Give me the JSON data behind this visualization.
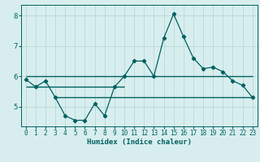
{
  "xlabel": "Humidex (Indice chaleur)",
  "bg_color": "#d8eeee",
  "grid_color": "#b8d8d8",
  "line_color": "#006060",
  "xlim": [
    -0.5,
    23.5
  ],
  "ylim": [
    4.35,
    8.35
  ],
  "yticks": [
    5,
    6,
    7,
    8
  ],
  "xticks": [
    0,
    1,
    2,
    3,
    4,
    5,
    6,
    7,
    8,
    9,
    10,
    11,
    12,
    13,
    14,
    15,
    16,
    17,
    18,
    19,
    20,
    21,
    22,
    23
  ],
  "series1_x": [
    0,
    1,
    2,
    3,
    4,
    5,
    6,
    7,
    8,
    9,
    10,
    11,
    12,
    13,
    14,
    15,
    16,
    17,
    18,
    19,
    20,
    21,
    22,
    23
  ],
  "series1_y": [
    5.9,
    5.65,
    5.85,
    5.3,
    4.7,
    4.55,
    4.55,
    5.1,
    4.7,
    5.65,
    6.0,
    6.5,
    6.5,
    6.0,
    7.25,
    8.05,
    7.3,
    6.6,
    6.25,
    6.3,
    6.15,
    5.85,
    5.7,
    5.3
  ],
  "hline1_y": 5.3,
  "hline1_xstart": 3,
  "hline1_xend": 23,
  "hline2_y": 5.65,
  "hline2_xstart": 0,
  "hline2_xend": 10,
  "hline3_y": 6.0,
  "hline3_xstart": 0,
  "hline3_xend": 23
}
